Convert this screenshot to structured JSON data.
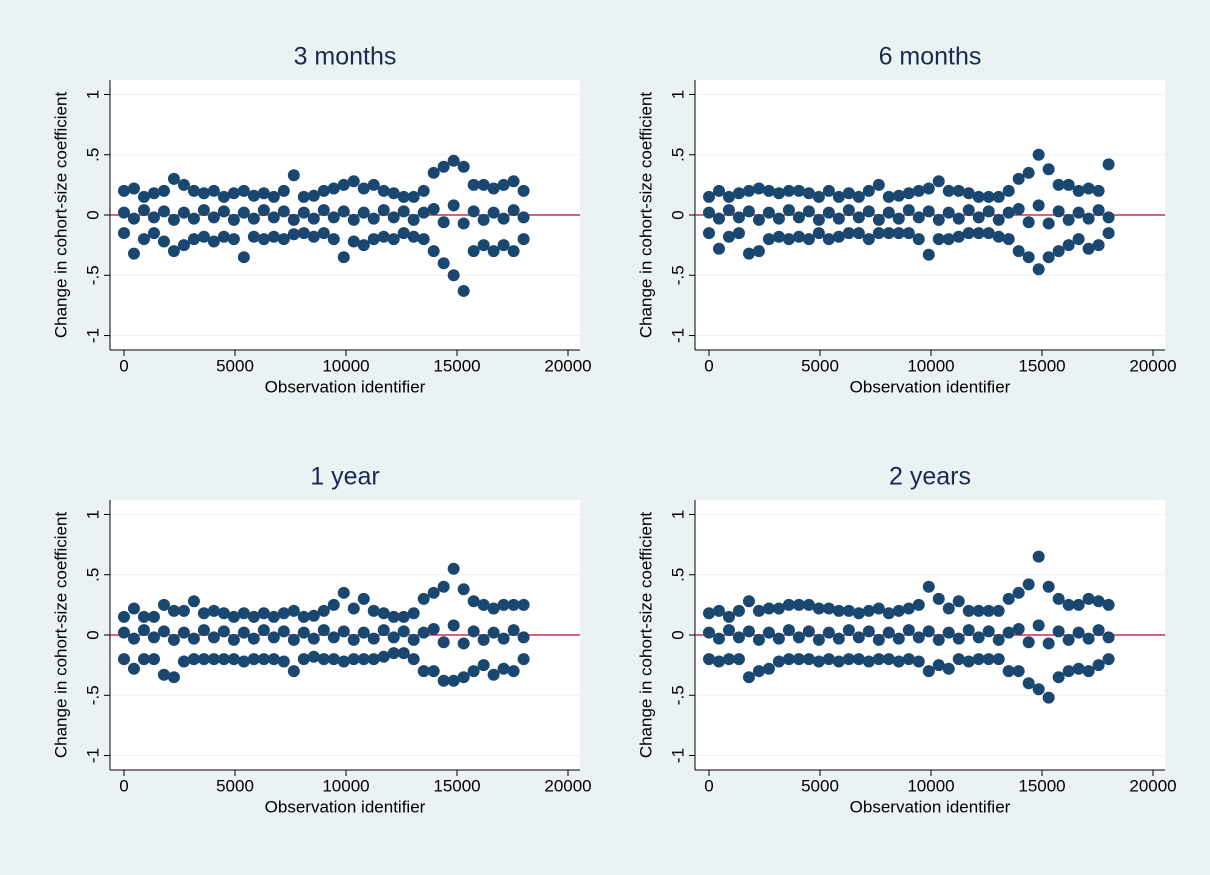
{
  "chart_data": [
    {
      "type": "scatter",
      "title": "3 months",
      "x_label": "Observation identifier",
      "y_label": "Change in cohort-size coefficient",
      "color": "#1a476f",
      "refline": 0,
      "refline_color": "#c10534",
      "grid": true,
      "xlim": [
        -630,
        20540
      ],
      "ylim": [
        -1.12,
        1.12
      ],
      "xticks": [
        0,
        5000,
        10000,
        15000,
        20000
      ],
      "yticks": [
        -1,
        {
          "value": -0.5,
          "label": "-.5"
        },
        0,
        {
          "value": 0.5,
          "label": ".5"
        },
        1
      ],
      "x": [
        0,
        450,
        900,
        1350,
        1800,
        2250,
        2700,
        3150,
        3600,
        4050,
        4500,
        4950,
        5400,
        5850,
        6300,
        6750,
        7200,
        7650,
        8100,
        8550,
        9000,
        9450,
        9900,
        10350,
        10800,
        11250,
        11700,
        12150,
        12600,
        13050,
        13500,
        13950,
        14400,
        14850,
        15300,
        15750,
        16200,
        16650,
        17100,
        17550,
        18000,
        0,
        450,
        900,
        1350,
        1800,
        2250,
        2700,
        3150,
        3600,
        4050,
        4500,
        4950,
        5400,
        5850,
        6300,
        6750,
        7200,
        7650,
        8100,
        8550,
        9000,
        9450,
        9900,
        10350,
        10800,
        11250,
        11700,
        12150,
        12600,
        13050,
        13500,
        13950,
        14400,
        14850,
        15300,
        15750,
        16200,
        16650,
        17100,
        17550,
        18000,
        0,
        450,
        900,
        1350,
        1800,
        2250,
        2700,
        3150,
        3600,
        4050,
        4500,
        4950,
        5400,
        5850,
        6300,
        6750,
        7200,
        7650,
        8100,
        8550,
        9000,
        9450,
        9900,
        10350,
        10800,
        11250,
        11700,
        12150,
        12600,
        13050,
        13500,
        13950,
        14400,
        14850,
        15300,
        15750,
        16200,
        16650,
        17100,
        17550,
        18000
      ],
      "y": [
        0.2,
        0.22,
        0.15,
        0.18,
        0.2,
        0.3,
        0.25,
        0.2,
        0.18,
        0.2,
        0.15,
        0.18,
        0.2,
        0.16,
        0.18,
        0.15,
        0.2,
        0.33,
        0.15,
        0.16,
        0.2,
        0.22,
        0.25,
        0.28,
        0.22,
        0.25,
        0.2,
        0.18,
        0.15,
        0.15,
        0.2,
        0.35,
        0.4,
        0.45,
        0.4,
        0.25,
        0.25,
        0.22,
        0.25,
        0.28,
        0.2,
        0.02,
        -0.03,
        0.04,
        -0.02,
        0.03,
        -0.04,
        0.02,
        -0.03,
        0.04,
        -0.02,
        0.03,
        -0.04,
        0.02,
        -0.03,
        0.04,
        -0.02,
        0.03,
        -0.04,
        0.02,
        -0.03,
        0.04,
        -0.02,
        0.03,
        -0.04,
        0.02,
        -0.03,
        0.04,
        -0.02,
        0.03,
        -0.04,
        0.02,
        0.05,
        -0.06,
        0.08,
        -0.07,
        0.03,
        -0.04,
        0.02,
        -0.03,
        0.04,
        -0.02,
        -0.15,
        -0.32,
        -0.2,
        -0.15,
        -0.22,
        -0.3,
        -0.25,
        -0.2,
        -0.18,
        -0.22,
        -0.18,
        -0.2,
        -0.35,
        -0.18,
        -0.2,
        -0.18,
        -0.2,
        -0.16,
        -0.15,
        -0.18,
        -0.15,
        -0.2,
        -0.35,
        -0.22,
        -0.25,
        -0.2,
        -0.18,
        -0.2,
        -0.15,
        -0.18,
        -0.2,
        -0.3,
        -0.4,
        -0.5,
        -0.63,
        -0.3,
        -0.25,
        -0.3,
        -0.25,
        -0.3,
        -0.2
      ]
    },
    {
      "type": "scatter",
      "title": "6 months",
      "x_label": "Observation identifier",
      "y_label": "Change in cohort-size coefficient",
      "color": "#1a476f",
      "refline": 0,
      "refline_color": "#c10534",
      "grid": true,
      "xlim": [
        -630,
        20540
      ],
      "ylim": [
        -1.12,
        1.12
      ],
      "xticks": [
        0,
        5000,
        10000,
        15000,
        20000
      ],
      "yticks": [
        -1,
        {
          "value": -0.5,
          "label": "-.5"
        },
        0,
        {
          "value": 0.5,
          "label": ".5"
        },
        1
      ],
      "x": [
        0,
        450,
        900,
        1350,
        1800,
        2250,
        2700,
        3150,
        3600,
        4050,
        4500,
        4950,
        5400,
        5850,
        6300,
        6750,
        7200,
        7650,
        8100,
        8550,
        9000,
        9450,
        9900,
        10350,
        10800,
        11250,
        11700,
        12150,
        12600,
        13050,
        13500,
        13950,
        14400,
        14850,
        15300,
        15750,
        16200,
        16650,
        17100,
        17550,
        18000,
        0,
        450,
        900,
        1350,
        1800,
        2250,
        2700,
        3150,
        3600,
        4050,
        4500,
        4950,
        5400,
        5850,
        6300,
        6750,
        7200,
        7650,
        8100,
        8550,
        9000,
        9450,
        9900,
        10350,
        10800,
        11250,
        11700,
        12150,
        12600,
        13050,
        13500,
        13950,
        14400,
        14850,
        15300,
        15750,
        16200,
        16650,
        17100,
        17550,
        18000,
        0,
        450,
        900,
        1350,
        1800,
        2250,
        2700,
        3150,
        3600,
        4050,
        4500,
        4950,
        5400,
        5850,
        6300,
        6750,
        7200,
        7650,
        8100,
        8550,
        9000,
        9450,
        9900,
        10350,
        10800,
        11250,
        11700,
        12150,
        12600,
        13050,
        13500,
        13950,
        14400,
        14850,
        15300,
        15750,
        16200,
        16650,
        17100,
        17550,
        18000
      ],
      "y": [
        0.15,
        0.2,
        0.15,
        0.18,
        0.2,
        0.22,
        0.2,
        0.18,
        0.2,
        0.2,
        0.18,
        0.15,
        0.2,
        0.15,
        0.18,
        0.15,
        0.2,
        0.25,
        0.15,
        0.16,
        0.18,
        0.2,
        0.22,
        0.28,
        0.2,
        0.2,
        0.18,
        0.15,
        0.15,
        0.15,
        0.2,
        0.3,
        0.35,
        0.5,
        0.38,
        0.25,
        0.25,
        0.2,
        0.22,
        0.2,
        0.42,
        0.02,
        -0.03,
        0.04,
        -0.02,
        0.03,
        -0.04,
        0.02,
        -0.03,
        0.04,
        -0.02,
        0.03,
        -0.04,
        0.02,
        -0.03,
        0.04,
        -0.02,
        0.03,
        -0.04,
        0.02,
        -0.03,
        0.04,
        -0.02,
        0.03,
        -0.04,
        0.02,
        -0.03,
        0.04,
        -0.02,
        0.03,
        -0.04,
        0.02,
        0.05,
        -0.06,
        0.08,
        -0.07,
        0.03,
        -0.04,
        0.02,
        -0.03,
        0.04,
        -0.02,
        -0.15,
        -0.28,
        -0.18,
        -0.15,
        -0.32,
        -0.3,
        -0.2,
        -0.18,
        -0.2,
        -0.18,
        -0.2,
        -0.15,
        -0.2,
        -0.18,
        -0.15,
        -0.15,
        -0.2,
        -0.15,
        -0.15,
        -0.15,
        -0.15,
        -0.2,
        -0.33,
        -0.2,
        -0.2,
        -0.18,
        -0.15,
        -0.15,
        -0.15,
        -0.18,
        -0.2,
        -0.3,
        -0.35,
        -0.45,
        -0.35,
        -0.3,
        -0.25,
        -0.2,
        -0.28,
        -0.25,
        -0.15
      ]
    },
    {
      "type": "scatter",
      "title": "1 year",
      "x_label": "Observation identifier",
      "y_label": "Change in cohort-size coefficient",
      "color": "#1a476f",
      "refline": 0,
      "refline_color": "#c10534",
      "grid": true,
      "xlim": [
        -630,
        20540
      ],
      "ylim": [
        -1.12,
        1.12
      ],
      "xticks": [
        0,
        5000,
        10000,
        15000,
        20000
      ],
      "yticks": [
        -1,
        {
          "value": -0.5,
          "label": "-.5"
        },
        0,
        {
          "value": 0.5,
          "label": ".5"
        },
        1
      ],
      "x": [
        0,
        450,
        900,
        1350,
        1800,
        2250,
        2700,
        3150,
        3600,
        4050,
        4500,
        4950,
        5400,
        5850,
        6300,
        6750,
        7200,
        7650,
        8100,
        8550,
        9000,
        9450,
        9900,
        10350,
        10800,
        11250,
        11700,
        12150,
        12600,
        13050,
        13500,
        13950,
        14400,
        14850,
        15300,
        15750,
        16200,
        16650,
        17100,
        17550,
        18000,
        0,
        450,
        900,
        1350,
        1800,
        2250,
        2700,
        3150,
        3600,
        4050,
        4500,
        4950,
        5400,
        5850,
        6300,
        6750,
        7200,
        7650,
        8100,
        8550,
        9000,
        9450,
        9900,
        10350,
        10800,
        11250,
        11700,
        12150,
        12600,
        13050,
        13500,
        13950,
        14400,
        14850,
        15300,
        15750,
        16200,
        16650,
        17100,
        17550,
        18000,
        0,
        450,
        900,
        1350,
        1800,
        2250,
        2700,
        3150,
        3600,
        4050,
        4500,
        4950,
        5400,
        5850,
        6300,
        6750,
        7200,
        7650,
        8100,
        8550,
        9000,
        9450,
        9900,
        10350,
        10800,
        11250,
        11700,
        12150,
        12600,
        13050,
        13500,
        13950,
        14400,
        14850,
        15300,
        15750,
        16200,
        16650,
        17100,
        17550,
        18000
      ],
      "y": [
        0.15,
        0.22,
        0.15,
        0.15,
        0.25,
        0.2,
        0.2,
        0.28,
        0.18,
        0.2,
        0.18,
        0.15,
        0.18,
        0.15,
        0.18,
        0.15,
        0.18,
        0.2,
        0.15,
        0.16,
        0.2,
        0.25,
        0.35,
        0.22,
        0.3,
        0.2,
        0.18,
        0.15,
        0.15,
        0.18,
        0.3,
        0.35,
        0.4,
        0.55,
        0.38,
        0.28,
        0.25,
        0.22,
        0.25,
        0.25,
        0.25,
        0.02,
        -0.03,
        0.04,
        -0.02,
        0.03,
        -0.04,
        0.02,
        -0.03,
        0.04,
        -0.02,
        0.03,
        -0.04,
        0.02,
        -0.03,
        0.04,
        -0.02,
        0.03,
        -0.04,
        0.02,
        -0.03,
        0.04,
        -0.02,
        0.03,
        -0.04,
        0.02,
        -0.03,
        0.04,
        -0.02,
        0.03,
        -0.04,
        0.02,
        0.05,
        -0.06,
        0.08,
        -0.07,
        0.03,
        -0.04,
        0.02,
        -0.03,
        0.04,
        -0.02,
        -0.2,
        -0.28,
        -0.2,
        -0.2,
        -0.33,
        -0.35,
        -0.22,
        -0.2,
        -0.2,
        -0.2,
        -0.2,
        -0.2,
        -0.22,
        -0.2,
        -0.2,
        -0.2,
        -0.22,
        -0.3,
        -0.2,
        -0.18,
        -0.2,
        -0.2,
        -0.22,
        -0.2,
        -0.2,
        -0.2,
        -0.18,
        -0.15,
        -0.15,
        -0.2,
        -0.3,
        -0.3,
        -0.38,
        -0.38,
        -0.35,
        -0.3,
        -0.25,
        -0.33,
        -0.28,
        -0.3,
        -0.2
      ]
    },
    {
      "type": "scatter",
      "title": "2 years",
      "x_label": "Observation identifier",
      "y_label": "Change in cohort-size coefficient",
      "color": "#1a476f",
      "refline": 0,
      "refline_color": "#c10534",
      "grid": true,
      "xlim": [
        -630,
        20540
      ],
      "ylim": [
        -1.12,
        1.12
      ],
      "xticks": [
        0,
        5000,
        10000,
        15000,
        20000
      ],
      "yticks": [
        -1,
        {
          "value": -0.5,
          "label": "-.5"
        },
        0,
        {
          "value": 0.5,
          "label": ".5"
        },
        1
      ],
      "x": [
        0,
        450,
        900,
        1350,
        1800,
        2250,
        2700,
        3150,
        3600,
        4050,
        4500,
        4950,
        5400,
        5850,
        6300,
        6750,
        7200,
        7650,
        8100,
        8550,
        9000,
        9450,
        9900,
        10350,
        10800,
        11250,
        11700,
        12150,
        12600,
        13050,
        13500,
        13950,
        14400,
        14850,
        15300,
        15750,
        16200,
        16650,
        17100,
        17550,
        18000,
        0,
        450,
        900,
        1350,
        1800,
        2250,
        2700,
        3150,
        3600,
        4050,
        4500,
        4950,
        5400,
        5850,
        6300,
        6750,
        7200,
        7650,
        8100,
        8550,
        9000,
        9450,
        9900,
        10350,
        10800,
        11250,
        11700,
        12150,
        12600,
        13050,
        13500,
        13950,
        14400,
        14850,
        15300,
        15750,
        16200,
        16650,
        17100,
        17550,
        18000,
        0,
        450,
        900,
        1350,
        1800,
        2250,
        2700,
        3150,
        3600,
        4050,
        4500,
        4950,
        5400,
        5850,
        6300,
        6750,
        7200,
        7650,
        8100,
        8550,
        9000,
        9450,
        9900,
        10350,
        10800,
        11250,
        11700,
        12150,
        12600,
        13050,
        13500,
        13950,
        14400,
        14850,
        15300,
        15750,
        16200,
        16650,
        17100,
        17550,
        18000
      ],
      "y": [
        0.18,
        0.2,
        0.15,
        0.2,
        0.28,
        0.2,
        0.22,
        0.22,
        0.25,
        0.25,
        0.25,
        0.22,
        0.22,
        0.2,
        0.2,
        0.18,
        0.2,
        0.22,
        0.18,
        0.2,
        0.22,
        0.25,
        0.4,
        0.3,
        0.22,
        0.28,
        0.2,
        0.2,
        0.2,
        0.2,
        0.3,
        0.35,
        0.42,
        0.65,
        0.4,
        0.3,
        0.25,
        0.25,
        0.3,
        0.28,
        0.25,
        0.02,
        -0.03,
        0.04,
        -0.02,
        0.03,
        -0.04,
        0.02,
        -0.03,
        0.04,
        -0.02,
        0.03,
        -0.04,
        0.02,
        -0.03,
        0.04,
        -0.02,
        0.03,
        -0.04,
        0.02,
        -0.03,
        0.04,
        -0.02,
        0.03,
        -0.04,
        0.02,
        -0.03,
        0.04,
        -0.02,
        0.03,
        -0.04,
        0.02,
        0.05,
        -0.06,
        0.08,
        -0.07,
        0.03,
        -0.04,
        0.02,
        -0.03,
        0.04,
        -0.02,
        -0.2,
        -0.22,
        -0.2,
        -0.2,
        -0.35,
        -0.3,
        -0.28,
        -0.22,
        -0.2,
        -0.2,
        -0.2,
        -0.22,
        -0.2,
        -0.22,
        -0.2,
        -0.2,
        -0.22,
        -0.2,
        -0.2,
        -0.22,
        -0.2,
        -0.22,
        -0.3,
        -0.25,
        -0.28,
        -0.2,
        -0.22,
        -0.2,
        -0.2,
        -0.2,
        -0.3,
        -0.3,
        -0.4,
        -0.45,
        -0.52,
        -0.35,
        -0.3,
        -0.28,
        -0.3,
        -0.25,
        -0.2
      ]
    }
  ]
}
